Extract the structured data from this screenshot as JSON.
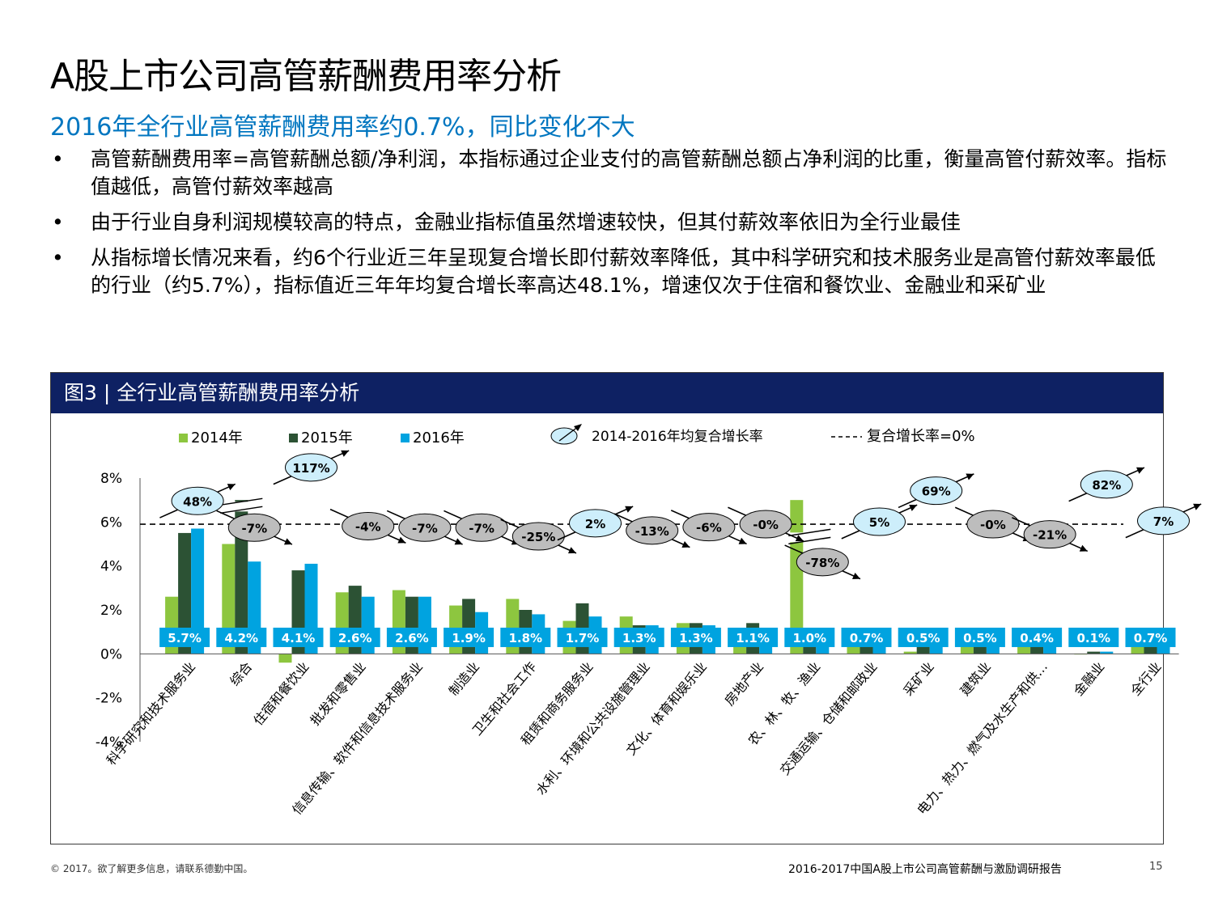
{
  "page": {
    "title": "A股上市公司高管薪酬费用率分析",
    "subtitle": "2016年全行业高管薪酬费用率约0.7%，同比变化不大",
    "bullets": [
      "高管薪酬费用率=高管薪酬总额/净利润，本指标通过企业支付的高管薪酬总额占净利润的比重，衡量高管付薪效率。指标值越低，高管付薪效率越高",
      "由于行业自身利润规模较高的特点，金融业指标值虽然增速较快，但其付薪效率依旧为全行业最佳",
      "从指标增长情况来看，约6个行业近三年呈现复合增长即付薪效率降低，其中科学研究和技术服务业是高管付薪效率最低的行业（约5.7%），指标值近三年年均复合增长率高达48.1%，增速仅次于住宿和餐饮业、金融业和采矿业"
    ],
    "figure_title": "图3 | 全行业高管薪酬费用率分析",
    "footer_left": "© 2017。欲了解更多信息，请联系德勤中国。",
    "footer_right": "2016-2017中国A股上市公司高管薪酬与激励调研报告",
    "page_number": "15"
  },
  "chart_data": {
    "type": "bar",
    "legend": {
      "position": "top",
      "cagr_label": "2014-2016年均复合增长率",
      "zero_growth_label": "复合增长率=0%"
    },
    "ylim": [
      -4,
      8
    ],
    "yticks": [
      "8%",
      "6%",
      "4%",
      "2%",
      "0%",
      "-2%",
      "-4%"
    ],
    "categories": [
      "科学研究和技术服务业",
      "综合",
      "住宿和餐饮业",
      "批发和零售业",
      "信息传输、软件和信息技术服务业",
      "制造业",
      "卫生和社会工作",
      "租赁和商务服务业",
      "水利、环境和公共设施管理业",
      "文化、体育和娱乐业",
      "房地产业",
      "农、林、牧、渔业",
      "交通运输、仓储和邮政业",
      "采矿业",
      "建筑业",
      "电力、热力、燃气及水生产和供…",
      "金融业",
      "全行业"
    ],
    "series": [
      {
        "name": "2014年",
        "color": "#8dc63f",
        "values": [
          2.6,
          5.0,
          -0.4,
          2.8,
          2.9,
          2.2,
          2.5,
          1.5,
          1.7,
          1.4,
          1.1,
          7.0,
          0.6,
          0.1,
          0.4,
          0.5,
          0.0,
          0.6
        ]
      },
      {
        "name": "2015年",
        "color": "#2c5234",
        "values": [
          5.5,
          7.0,
          3.8,
          3.1,
          2.6,
          2.5,
          2.0,
          2.3,
          1.3,
          1.4,
          1.4,
          0.7,
          0.7,
          0.6,
          0.5,
          0.6,
          0.1,
          0.6
        ]
      },
      {
        "name": "2016年",
        "color": "#00a3e0",
        "values": [
          5.7,
          4.2,
          4.1,
          2.6,
          2.6,
          1.9,
          1.8,
          1.7,
          1.3,
          1.3,
          1.1,
          1.0,
          0.7,
          0.5,
          0.5,
          0.4,
          0.1,
          0.7
        ]
      }
    ],
    "value_labels": [
      "5.7%",
      "4.2%",
      "4.1%",
      "2.6%",
      "2.6%",
      "1.9%",
      "1.8%",
      "1.7%",
      "1.3%",
      "1.3%",
      "1.1%",
      "1.0%",
      "0.7%",
      "0.5%",
      "0.5%",
      "0.4%",
      "0.1%",
      "0.7%"
    ],
    "cagr_labels": [
      "48%",
      "-7%",
      "117%",
      "-4%",
      "-7%",
      "-7%",
      "-25%",
      "2%",
      "-13%",
      "-6%",
      "-0%",
      "-78%",
      "5%",
      "69%",
      "-0%",
      "-21%",
      "82%",
      "7%"
    ],
    "cagr_values": [
      48,
      -7,
      117,
      -4,
      -7,
      -7,
      -25,
      2,
      -13,
      -6,
      0,
      -78,
      5,
      69,
      0,
      -21,
      82,
      7
    ],
    "cagr_positive_color": "#cdeefb",
    "cagr_negative_color": "#bdbdbd",
    "label_box_color": "#00a3e0",
    "axis_break_categories": [
      "综合",
      "农、林、牧、渔业"
    ]
  }
}
